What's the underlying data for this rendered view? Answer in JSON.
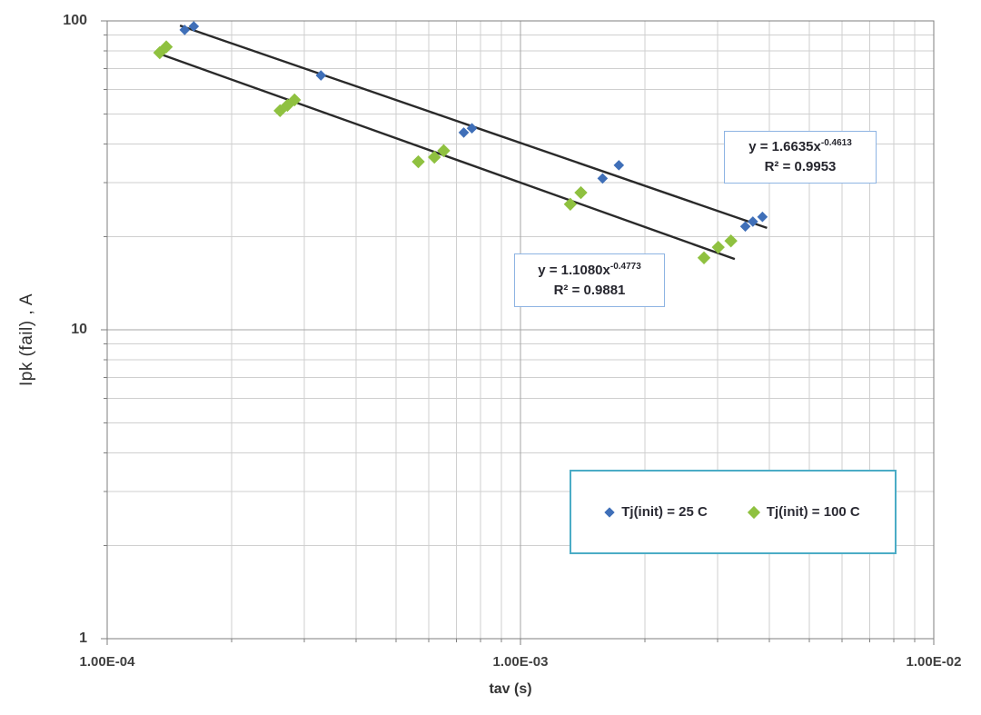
{
  "axes": {
    "x": {
      "title": "tav (s)",
      "tick_labels": [
        "1.00E-04",
        "1.00E-03",
        "1.00E-02"
      ]
    },
    "y": {
      "title": "Ipk (fail) ,  A",
      "tick_labels": [
        "100",
        "10",
        "1"
      ]
    }
  },
  "legend": {
    "items": [
      {
        "label": "Tj(init) = 25 C",
        "color": "#3F6FB8",
        "marker": "diamond"
      },
      {
        "label": "Tj(init) = 100 C",
        "color": "#8FC140",
        "marker": "diamond"
      }
    ]
  },
  "annotations": [
    {
      "eq_base": "y = 1.6635x",
      "eq_exp": "-0.4613",
      "r2": "R² = 0.9953"
    },
    {
      "eq_base": "y = 1.1080x",
      "eq_exp": "-0.4773",
      "r2": "R² = 0.9881"
    }
  ],
  "chart_data": {
    "type": "scatter",
    "title": "",
    "xlabel": "tav (s)",
    "ylabel": "Ipk (fail) ,  A",
    "x_scale": "log",
    "y_scale": "log",
    "xlim": [
      0.0001,
      0.01
    ],
    "ylim": [
      1,
      100
    ],
    "grid": "major and minor log gridlines on both axes",
    "legend_position": "inside bottom-right",
    "trendline_color": "#2A2A2A",
    "series": [
      {
        "name": "Tj(init) = 25 C",
        "color": "#3F6FB8",
        "marker": "diamond",
        "marker_r": 5.8,
        "points": [
          [
            0.000154,
            93.5
          ],
          [
            0.000162,
            96.0
          ],
          [
            0.000329,
            66.6
          ],
          [
            0.000729,
            43.5
          ],
          [
            0.000763,
            44.9
          ],
          [
            0.00158,
            30.9
          ],
          [
            0.00173,
            34.1
          ],
          [
            0.0035,
            21.6
          ],
          [
            0.00365,
            22.4
          ],
          [
            0.00385,
            23.2
          ]
        ],
        "trendline": {
          "type": "power",
          "a": 1.6635,
          "b": -0.4613,
          "r2": 0.9953,
          "x_range": [
            0.00015,
            0.00395
          ]
        }
      },
      {
        "name": "Tj(init) = 100 C",
        "color": "#8FC140",
        "marker": "diamond",
        "marker_r": 7.2,
        "points": [
          [
            0.000134,
            78.9
          ],
          [
            0.000139,
            82.4
          ],
          [
            0.000262,
            51.2
          ],
          [
            0.000273,
            53.3
          ],
          [
            0.000284,
            55.5
          ],
          [
            0.000566,
            35.0
          ],
          [
            0.000619,
            36.2
          ],
          [
            0.000652,
            38.0
          ],
          [
            0.00132,
            25.5
          ],
          [
            0.0014,
            27.8
          ],
          [
            0.00278,
            17.1
          ],
          [
            0.00301,
            18.5
          ],
          [
            0.00323,
            19.4
          ]
        ],
        "trendline": {
          "type": "power",
          "a": 1.108,
          "b": -0.4773,
          "r2": 0.9881,
          "x_range": [
            0.000132,
            0.0033
          ]
        }
      }
    ]
  }
}
